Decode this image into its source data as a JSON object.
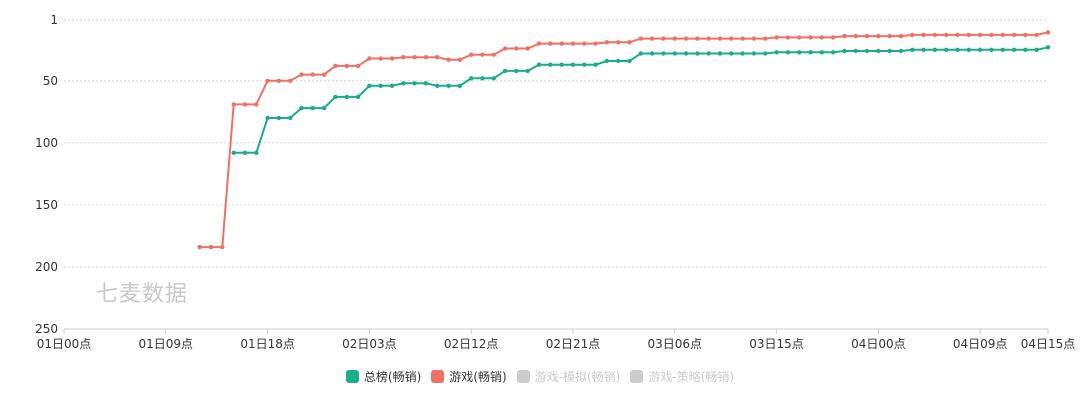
{
  "watermark": "七麦数据",
  "chart_data": {
    "type": "line",
    "title": "",
    "xlabel": "",
    "ylabel": "",
    "y_inverted": true,
    "ylim": [
      1,
      250
    ],
    "yticks": [
      1,
      50,
      100,
      150,
      200,
      250
    ],
    "x_tick_labels": [
      "01日00点",
      "01日09点",
      "01日18点",
      "02日03点",
      "02日12点",
      "02日21点",
      "03日06点",
      "03日15点",
      "04日00点",
      "04日09点",
      "04日15点"
    ],
    "x_tick_hours": [
      0,
      9,
      18,
      27,
      36,
      45,
      54,
      63,
      72,
      81,
      87
    ],
    "x_range_hours": [
      0,
      87
    ],
    "grid": "horizontal-dashed",
    "legend_position": "bottom-center",
    "series": [
      {
        "name": "总榜(畅销)",
        "color": "#1aad8a",
        "visible": true,
        "points": [
          [
            15,
            108
          ],
          [
            16,
            108
          ],
          [
            17,
            108
          ],
          [
            18,
            80
          ],
          [
            19,
            80
          ],
          [
            20,
            80
          ],
          [
            21,
            72
          ],
          [
            22,
            72
          ],
          [
            23,
            72
          ],
          [
            24,
            63
          ],
          [
            25,
            63
          ],
          [
            26,
            63
          ],
          [
            27,
            54
          ],
          [
            28,
            54
          ],
          [
            29,
            54
          ],
          [
            30,
            52
          ],
          [
            31,
            52
          ],
          [
            32,
            52
          ],
          [
            33,
            54
          ],
          [
            34,
            54
          ],
          [
            35,
            54
          ],
          [
            36,
            48
          ],
          [
            37,
            48
          ],
          [
            38,
            48
          ],
          [
            39,
            42
          ],
          [
            40,
            42
          ],
          [
            41,
            42
          ],
          [
            42,
            37
          ],
          [
            43,
            37
          ],
          [
            44,
            37
          ],
          [
            45,
            37
          ],
          [
            46,
            37
          ],
          [
            47,
            37
          ],
          [
            48,
            34
          ],
          [
            49,
            34
          ],
          [
            50,
            34
          ],
          [
            51,
            28
          ],
          [
            52,
            28
          ],
          [
            53,
            28
          ],
          [
            54,
            28
          ],
          [
            55,
            28
          ],
          [
            56,
            28
          ],
          [
            57,
            28
          ],
          [
            58,
            28
          ],
          [
            59,
            28
          ],
          [
            60,
            28
          ],
          [
            61,
            28
          ],
          [
            62,
            28
          ],
          [
            63,
            27
          ],
          [
            64,
            27
          ],
          [
            65,
            27
          ],
          [
            66,
            27
          ],
          [
            67,
            27
          ],
          [
            68,
            27
          ],
          [
            69,
            26
          ],
          [
            70,
            26
          ],
          [
            71,
            26
          ],
          [
            72,
            26
          ],
          [
            73,
            26
          ],
          [
            74,
            26
          ],
          [
            75,
            25
          ],
          [
            76,
            25
          ],
          [
            77,
            25
          ],
          [
            78,
            25
          ],
          [
            79,
            25
          ],
          [
            80,
            25
          ],
          [
            81,
            25
          ],
          [
            82,
            25
          ],
          [
            83,
            25
          ],
          [
            84,
            25
          ],
          [
            85,
            25
          ],
          [
            86,
            25
          ],
          [
            87,
            23
          ]
        ]
      },
      {
        "name": "游戏(畅销)",
        "color": "#f07163",
        "visible": true,
        "points": [
          [
            12,
            184
          ],
          [
            13,
            184
          ],
          [
            14,
            184
          ],
          [
            15,
            69
          ],
          [
            16,
            69
          ],
          [
            17,
            69
          ],
          [
            18,
            50
          ],
          [
            19,
            50
          ],
          [
            20,
            50
          ],
          [
            21,
            45
          ],
          [
            22,
            45
          ],
          [
            23,
            45
          ],
          [
            24,
            38
          ],
          [
            25,
            38
          ],
          [
            26,
            38
          ],
          [
            27,
            32
          ],
          [
            28,
            32
          ],
          [
            29,
            32
          ],
          [
            30,
            31
          ],
          [
            31,
            31
          ],
          [
            32,
            31
          ],
          [
            33,
            31
          ],
          [
            34,
            33
          ],
          [
            35,
            33
          ],
          [
            36,
            29
          ],
          [
            37,
            29
          ],
          [
            38,
            29
          ],
          [
            39,
            24
          ],
          [
            40,
            24
          ],
          [
            41,
            24
          ],
          [
            42,
            20
          ],
          [
            43,
            20
          ],
          [
            44,
            20
          ],
          [
            45,
            20
          ],
          [
            46,
            20
          ],
          [
            47,
            20
          ],
          [
            48,
            19
          ],
          [
            49,
            19
          ],
          [
            50,
            19
          ],
          [
            51,
            16
          ],
          [
            52,
            16
          ],
          [
            53,
            16
          ],
          [
            54,
            16
          ],
          [
            55,
            16
          ],
          [
            56,
            16
          ],
          [
            57,
            16
          ],
          [
            58,
            16
          ],
          [
            59,
            16
          ],
          [
            60,
            16
          ],
          [
            61,
            16
          ],
          [
            62,
            16
          ],
          [
            63,
            15
          ],
          [
            64,
            15
          ],
          [
            65,
            15
          ],
          [
            66,
            15
          ],
          [
            67,
            15
          ],
          [
            68,
            15
          ],
          [
            69,
            14
          ],
          [
            70,
            14
          ],
          [
            71,
            14
          ],
          [
            72,
            14
          ],
          [
            73,
            14
          ],
          [
            74,
            14
          ],
          [
            75,
            13
          ],
          [
            76,
            13
          ],
          [
            77,
            13
          ],
          [
            78,
            13
          ],
          [
            79,
            13
          ],
          [
            80,
            13
          ],
          [
            81,
            13
          ],
          [
            82,
            13
          ],
          [
            83,
            13
          ],
          [
            84,
            13
          ],
          [
            85,
            13
          ],
          [
            86,
            13
          ],
          [
            87,
            11
          ]
        ]
      },
      {
        "name": "游戏-模拟(畅销)",
        "color": "#cccccc",
        "visible": false,
        "points": []
      },
      {
        "name": "游戏-策略(畅销)",
        "color": "#cccccc",
        "visible": false,
        "points": []
      }
    ]
  }
}
